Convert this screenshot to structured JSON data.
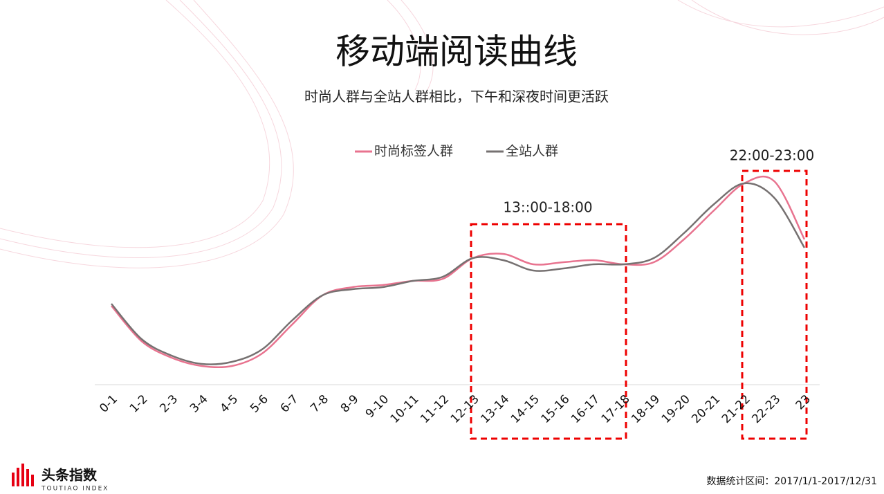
{
  "chart_data": {
    "type": "line",
    "title": "移动端阅读曲线",
    "subtitle": "时尚人群与全站人群相比，下午和深夜时间更活跃",
    "categories": [
      "0-1",
      "1-2",
      "2-3",
      "3-4",
      "4-5",
      "5-6",
      "6-7",
      "7-8",
      "8-9",
      "9-10",
      "10-11",
      "11-12",
      "12-13",
      "13-14",
      "14-15",
      "15-16",
      "16-17",
      "17-18",
      "18-19",
      "19-20",
      "20-21",
      "21-22",
      "22-23",
      "23"
    ],
    "series": [
      {
        "name": "时尚标签人群",
        "color": "#e8738f",
        "values": [
          38,
          21,
          13,
          9,
          9,
          15,
          29,
          43,
          47,
          48,
          50,
          51,
          61,
          63,
          58,
          59,
          60,
          58,
          59,
          70,
          84,
          97,
          98,
          70
        ]
      },
      {
        "name": "全站人群",
        "color": "#767171",
        "values": [
          39,
          22,
          14,
          10,
          11,
          17,
          31,
          43,
          46,
          47,
          50,
          52,
          61,
          60,
          55,
          56,
          58,
          58,
          61,
          73,
          87,
          97,
          90,
          66
        ]
      }
    ],
    "ylim": [
      0,
      100
    ],
    "legend": "top",
    "annotations": [
      "13::00-18:00",
      "22:00-23:00"
    ]
  },
  "logo": {
    "name": "头条指数",
    "sub": "TOUTIAO INDEX"
  },
  "footer": "数据统计区间：2017/1/1-2017/12/31"
}
